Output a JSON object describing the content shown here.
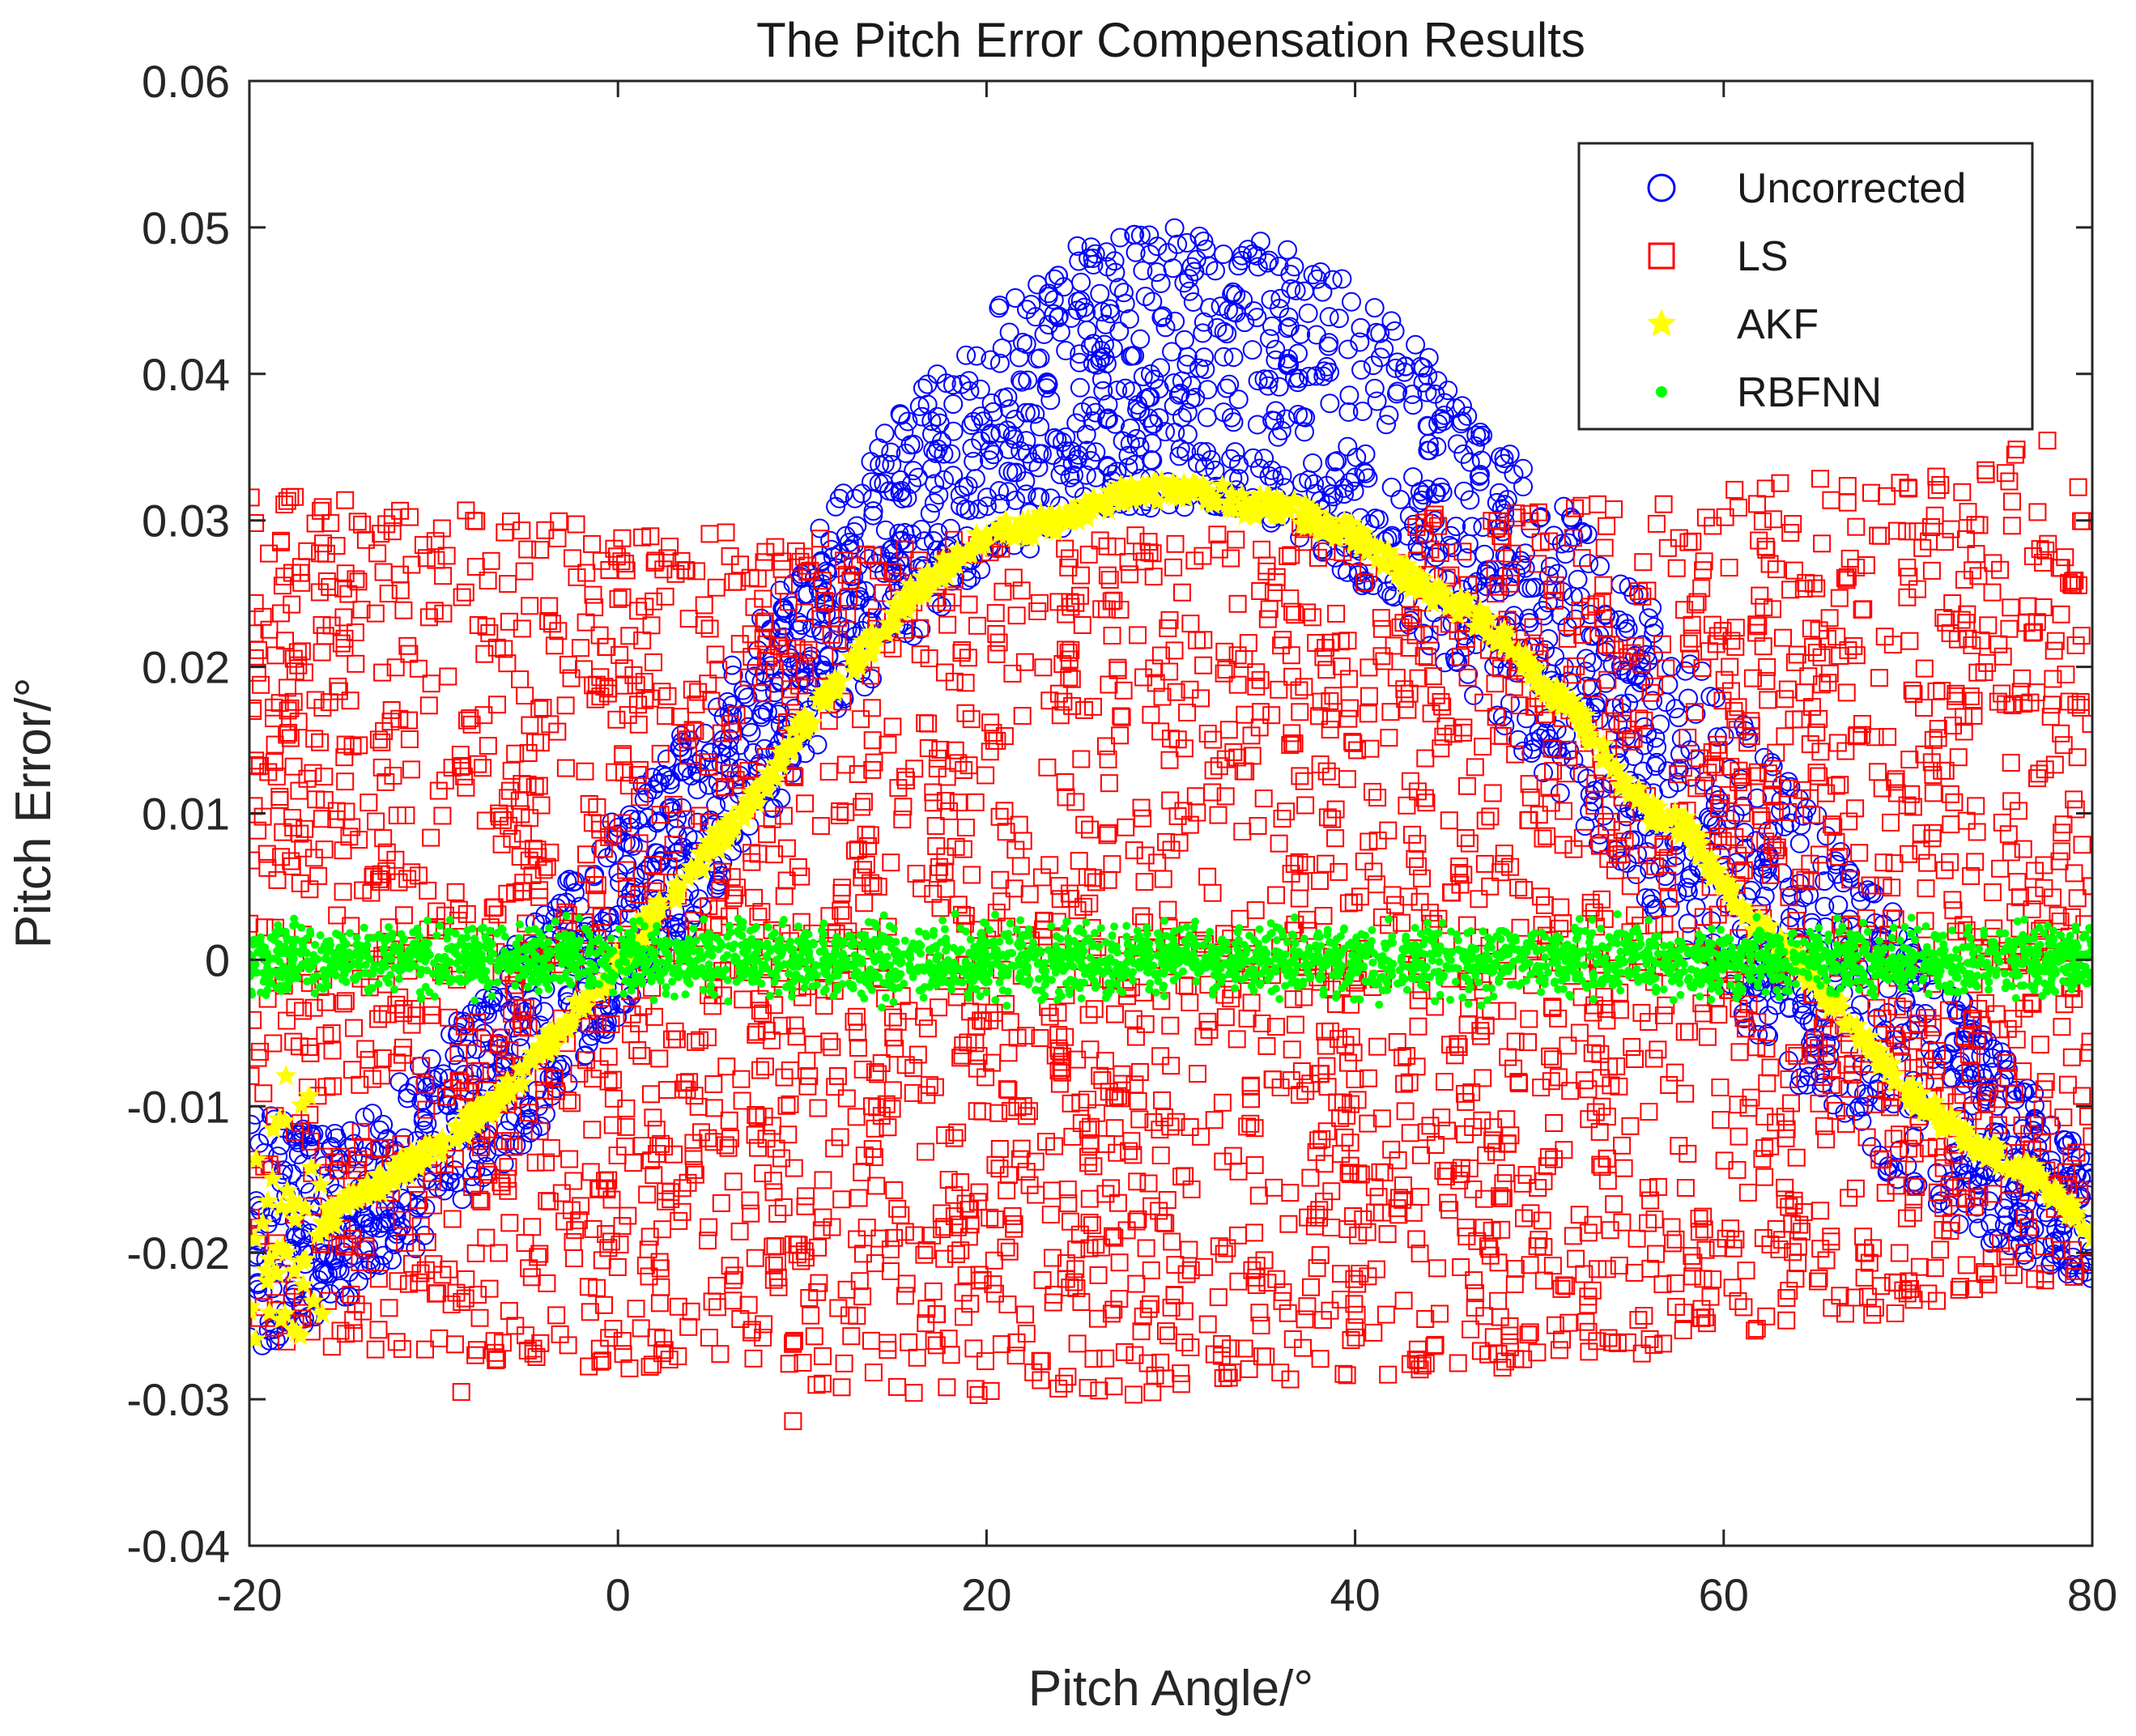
{
  "chart_data": {
    "type": "scatter",
    "title": "The Pitch Error Compensation Results",
    "xlabel": "Pitch Angle/°",
    "ylabel": "Pitch Error/°",
    "xlim": [
      -20,
      80
    ],
    "ylim": [
      -0.04,
      0.06
    ],
    "xticks": [
      -20,
      0,
      20,
      40,
      60,
      80
    ],
    "yticks": [
      -0.04,
      -0.03,
      -0.02,
      -0.01,
      0,
      0.01,
      0.02,
      0.03,
      0.04,
      0.05,
      0.06
    ],
    "xtick_labels": [
      "-20",
      "0",
      "20",
      "40",
      "60",
      "80"
    ],
    "ytick_labels": [
      "-0.04",
      "-0.03",
      "-0.02",
      "-0.01",
      "0",
      "0.01",
      "0.02",
      "0.03",
      "0.04",
      "0.05",
      "0.06"
    ],
    "grid": false,
    "legend_position": "top-right",
    "series": [
      {
        "name": "Uncorrected",
        "marker": "circle",
        "color": "#0000ff",
        "description_points": {
          "x": [
            -20,
            -15,
            -10,
            -5,
            0,
            5,
            10,
            15,
            20,
            25,
            30,
            35,
            40,
            45,
            50,
            55,
            60,
            65,
            70,
            75,
            80
          ],
          "upper": [
            -0.01,
            -0.012,
            -0.006,
            0.002,
            0.01,
            0.018,
            0.028,
            0.037,
            0.044,
            0.049,
            0.0502,
            0.0495,
            0.046,
            0.04,
            0.033,
            0.026,
            0.018,
            0.01,
            0.002,
            -0.006,
            -0.014
          ],
          "lower": [
            -0.027,
            -0.024,
            -0.019,
            -0.013,
            -0.004,
            0.004,
            0.013,
            0.021,
            0.026,
            0.03,
            0.031,
            0.03,
            0.026,
            0.02,
            0.013,
            0.005,
            -0.003,
            -0.01,
            -0.016,
            -0.02,
            -0.022
          ]
        }
      },
      {
        "name": "LS",
        "marker": "square",
        "color": "#ff0000",
        "description_points": {
          "x": [
            -20,
            -10,
            0,
            10,
            20,
            30,
            40,
            50,
            60,
            70,
            80
          ],
          "upper": [
            0.032,
            0.031,
            0.0295,
            0.029,
            0.029,
            0.029,
            0.03,
            0.031,
            0.032,
            0.034,
            0.036
          ],
          "lower": [
            -0.026,
            -0.027,
            -0.028,
            -0.029,
            -0.03,
            -0.03,
            -0.029,
            -0.028,
            -0.026,
            -0.024,
            -0.022
          ]
        }
      },
      {
        "name": "AKF",
        "marker": "star",
        "color": "#ffff00",
        "x": [
          -20,
          -18,
          -16,
          -14,
          -12,
          -10,
          -8,
          -6,
          -4,
          -2,
          0,
          2,
          4,
          6,
          8,
          10,
          12,
          14,
          16,
          18,
          20,
          22,
          24,
          26,
          28,
          30,
          32,
          34,
          36,
          38,
          40,
          42,
          44,
          46,
          48,
          50,
          52,
          54,
          56,
          58,
          60,
          62,
          64,
          66,
          68,
          70,
          72,
          74,
          76,
          78,
          80
        ],
        "y": [
          -0.024,
          -0.02,
          -0.018,
          -0.016,
          -0.0145,
          -0.013,
          -0.011,
          -0.009,
          -0.006,
          -0.003,
          0.0,
          0.003,
          0.006,
          0.009,
          0.012,
          0.016,
          0.019,
          0.022,
          0.025,
          0.027,
          0.029,
          0.0295,
          0.03,
          0.031,
          0.032,
          0.032,
          0.032,
          0.031,
          0.031,
          0.03,
          0.029,
          0.027,
          0.025,
          0.024,
          0.022,
          0.019,
          0.017,
          0.013,
          0.01,
          0.009,
          0.005,
          0.002,
          0.0,
          -0.003,
          -0.006,
          -0.009,
          -0.011,
          -0.013,
          -0.014,
          -0.016,
          -0.019
        ]
      },
      {
        "name": "RBFNN",
        "marker": "dot",
        "color": "#00ff00",
        "description_points": {
          "x": [
            -20,
            80
          ],
          "upper": [
            0.003,
            0.003
          ],
          "lower": [
            -0.003,
            -0.003
          ]
        }
      }
    ]
  }
}
